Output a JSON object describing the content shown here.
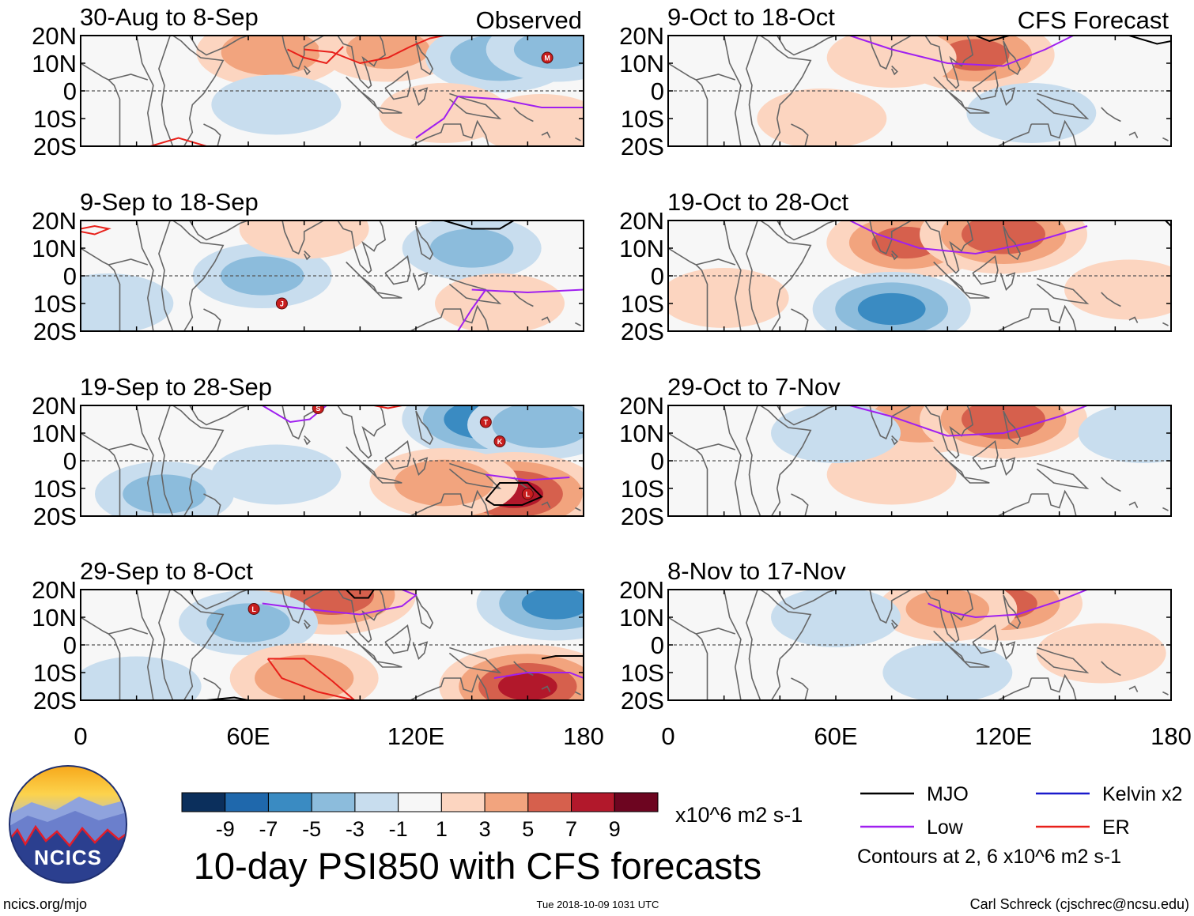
{
  "chart_data": {
    "type": "heatmap",
    "title": "10-day PSI850 with CFS forecasts",
    "variable": "PSI850 anomaly",
    "units": "x10^6 m2 s-1",
    "header_labels": {
      "observed": "Observed",
      "forecast": "CFS Forecast"
    },
    "x_ticks": [
      "0",
      "60E",
      "120E",
      "180"
    ],
    "x_range": [
      0,
      180
    ],
    "y_ticks": [
      "20N",
      "10N",
      "0",
      "10S",
      "20S"
    ],
    "y_range": [
      -20,
      20
    ],
    "colorbar": {
      "labels": [
        "-9",
        "-7",
        "-5",
        "-3",
        "-1",
        "1",
        "3",
        "5",
        "7",
        "9"
      ],
      "colors": [
        "#0b2f5c",
        "#1f68ac",
        "#3a8bc2",
        "#8cbcdc",
        "#c8ddee",
        "#f7f7f7",
        "#fcd5c0",
        "#f2a47e",
        "#d6604d",
        "#b2182b",
        "#6d0520"
      ]
    },
    "legend": [
      {
        "label": "MJO",
        "color": "#000000"
      },
      {
        "label": "Kelvin x2",
        "color": "#1a1acc"
      },
      {
        "label": "Low",
        "color": "#a020f0"
      },
      {
        "label": "ER",
        "color": "#e8201a"
      }
    ],
    "contour_note": "Contours at 2, 6 x10^6 m2 s-1",
    "panels": [
      {
        "period": "30-Aug to 8-Sep",
        "kind": "Observed",
        "anomalies": [
          {
            "lon": 68,
            "lat": 14,
            "value": 4
          },
          {
            "lon": 110,
            "lat": 15,
            "value": 3
          },
          {
            "lon": 150,
            "lat": 12,
            "value": -4
          },
          {
            "lon": 170,
            "lat": 15,
            "value": -3
          },
          {
            "lon": 70,
            "lat": -5,
            "value": -2
          },
          {
            "lon": 130,
            "lat": -8,
            "value": 2
          },
          {
            "lon": 165,
            "lat": -12,
            "value": 2
          }
        ],
        "storms": [
          {
            "lon": 167,
            "lat": 12,
            "letter": "M"
          }
        ]
      },
      {
        "period": "9-Sep to 18-Sep",
        "kind": "Observed",
        "anomalies": [
          {
            "lon": 65,
            "lat": 0,
            "value": -3
          },
          {
            "lon": 140,
            "lat": 10,
            "value": -3
          },
          {
            "lon": 10,
            "lat": -10,
            "value": -2
          },
          {
            "lon": 150,
            "lat": -10,
            "value": 2
          },
          {
            "lon": 80,
            "lat": 17,
            "value": 2
          }
        ],
        "storms": [
          {
            "lon": 72,
            "lat": -10,
            "letter": "J"
          }
        ]
      },
      {
        "period": "19-Sep to 28-Sep",
        "kind": "Observed",
        "anomalies": [
          {
            "lon": 145,
            "lat": 15,
            "value": -6
          },
          {
            "lon": 165,
            "lat": 13,
            "value": -4
          },
          {
            "lon": 155,
            "lat": -12,
            "value": 7
          },
          {
            "lon": 130,
            "lat": -8,
            "value": 4
          },
          {
            "lon": 30,
            "lat": -12,
            "value": -3
          },
          {
            "lon": 70,
            "lat": -5,
            "value": -2
          }
        ],
        "storms": [
          {
            "lon": 85,
            "lat": 19,
            "letter": "S"
          },
          {
            "lon": 145,
            "lat": 14,
            "letter": "T"
          },
          {
            "lon": 150,
            "lat": 7,
            "letter": "K"
          },
          {
            "lon": 160,
            "lat": -12,
            "letter": "L"
          }
        ]
      },
      {
        "period": "29-Sep to 8-Oct",
        "kind": "Observed",
        "anomalies": [
          {
            "lon": 90,
            "lat": 18,
            "value": 6
          },
          {
            "lon": 60,
            "lat": 8,
            "value": -3
          },
          {
            "lon": 170,
            "lat": 15,
            "value": -5
          },
          {
            "lon": 80,
            "lat": -12,
            "value": 4
          },
          {
            "lon": 160,
            "lat": -15,
            "value": 7
          },
          {
            "lon": 20,
            "lat": -15,
            "value": -2
          }
        ],
        "storms": [
          {
            "lon": 62,
            "lat": 13,
            "letter": "L"
          }
        ]
      },
      {
        "period": "9-Oct to 18-Oct",
        "kind": "CFS Forecast",
        "anomalies": [
          {
            "lon": 110,
            "lat": 13,
            "value": 5
          },
          {
            "lon": 80,
            "lat": 12,
            "value": 2
          },
          {
            "lon": 130,
            "lat": -8,
            "value": -2
          },
          {
            "lon": 55,
            "lat": -10,
            "value": 2
          }
        ],
        "storms": []
      },
      {
        "period": "19-Oct to 28-Oct",
        "kind": "CFS Forecast",
        "anomalies": [
          {
            "lon": 85,
            "lat": 12,
            "value": 5
          },
          {
            "lon": 120,
            "lat": 15,
            "value": 6
          },
          {
            "lon": 80,
            "lat": -12,
            "value": -5
          },
          {
            "lon": 20,
            "lat": -8,
            "value": 2
          },
          {
            "lon": 165,
            "lat": -5,
            "value": 2
          }
        ],
        "storms": []
      },
      {
        "period": "29-Oct to 7-Nov",
        "kind": "CFS Forecast",
        "anomalies": [
          {
            "lon": 90,
            "lat": 15,
            "value": 4
          },
          {
            "lon": 120,
            "lat": 15,
            "value": 6
          },
          {
            "lon": 80,
            "lat": -5,
            "value": 2
          },
          {
            "lon": 170,
            "lat": 10,
            "value": -2
          },
          {
            "lon": 60,
            "lat": 10,
            "value": -2
          }
        ],
        "storms": []
      },
      {
        "period": "8-Nov to 17-Nov",
        "kind": "CFS Forecast",
        "anomalies": [
          {
            "lon": 120,
            "lat": 15,
            "value": 5
          },
          {
            "lon": 100,
            "lat": 13,
            "value": 3
          },
          {
            "lon": 100,
            "lat": -10,
            "value": -2
          },
          {
            "lon": 155,
            "lat": -3,
            "value": 2
          },
          {
            "lon": 60,
            "lat": 10,
            "value": -2
          }
        ],
        "storms": []
      }
    ]
  },
  "logo": {
    "text": "NCICS"
  },
  "footer": {
    "site": "ncics.org/mjo",
    "timestamp": "Tue 2018-10-09 1031 UTC",
    "author": "Carl Schreck (cjschrec@ncsu.edu)"
  }
}
